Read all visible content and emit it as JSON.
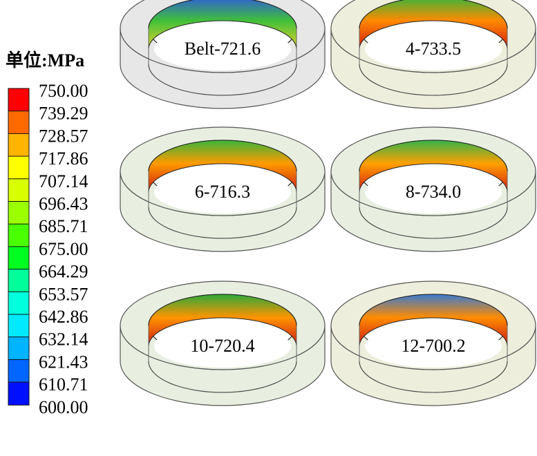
{
  "legend": {
    "title": "单位:MPa",
    "values": [
      "750.00",
      "739.29",
      "728.57",
      "717.86",
      "707.14",
      "696.43",
      "685.71",
      "675.00",
      "664.29",
      "653.57",
      "642.86",
      "632.14",
      "621.43",
      "610.71",
      "600.00"
    ],
    "colors": [
      "#ff0000",
      "#ff6a00",
      "#ffb400",
      "#ffff00",
      "#d8ff00",
      "#9cff00",
      "#4aff00",
      "#00ff20",
      "#00ff9a",
      "#00ffdc",
      "#00eaff",
      "#00b4ff",
      "#0066ff",
      "#0010ff"
    ]
  },
  "panels": [
    {
      "label": "Belt-721.6",
      "band_top": "#2f5fd6",
      "band_mid": "#3fbf3a",
      "band_bot": "#e5d22a",
      "tint": "#e7e7e7"
    },
    {
      "label": "4-733.5",
      "band_top": "#3ab53a",
      "band_mid": "#ff8a00",
      "band_bot": "#d61a10",
      "tint": "#eeeedc"
    },
    {
      "label": "6-716.3",
      "band_top": "#3ab53a",
      "band_mid": "#ff9a00",
      "band_bot": "#cc1a10",
      "tint": "#e8efe0"
    },
    {
      "label": "8-734.0",
      "band_top": "#34b34a",
      "band_mid": "#ffa000",
      "band_bot": "#d21b10",
      "tint": "#e8efe0"
    },
    {
      "label": "10-720.4",
      "band_top": "#2ea83a",
      "band_mid": "#ff9400",
      "band_bot": "#cc1a10",
      "tint": "#e8efe0"
    },
    {
      "label": "12-700.2",
      "band_top": "#3a7ad0",
      "band_mid": "#ff8c00",
      "band_bot": "#c81810",
      "tint": "#eeeedc"
    }
  ]
}
